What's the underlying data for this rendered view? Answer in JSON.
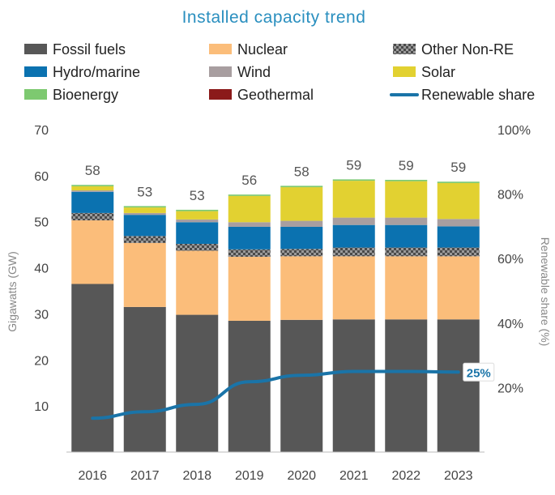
{
  "chart_data": {
    "type": "bar",
    "stacked": true,
    "title": "Installed capacity trend",
    "categories": [
      "2016",
      "2017",
      "2018",
      "2019",
      "2020",
      "2021",
      "2022",
      "2023"
    ],
    "ylabel": "Gigawatts (GW)",
    "y2label": "Renewable share (%)",
    "ylim": [
      0,
      70
    ],
    "y2lim": [
      0,
      100
    ],
    "yticks": [
      10,
      20,
      30,
      40,
      50,
      60,
      70
    ],
    "y2ticks": [
      "20%",
      "40%",
      "60%",
      "80%",
      "100%"
    ],
    "y2tick_values": [
      20,
      40,
      60,
      80,
      100
    ],
    "series": [
      {
        "name": "Fossil fuels",
        "color": "#575757",
        "values": [
          36.5,
          31.5,
          29.8,
          28.5,
          28.7,
          28.8,
          28.8,
          28.8
        ]
      },
      {
        "name": "Nuclear",
        "color": "#fbbd7a",
        "values": [
          13.8,
          13.9,
          13.9,
          13.9,
          13.8,
          13.7,
          13.7,
          13.7
        ]
      },
      {
        "name": "Other Non-RE",
        "color": "#707070",
        "pattern": "checker",
        "values": [
          1.6,
          1.5,
          1.5,
          1.6,
          1.6,
          1.9,
          1.9,
          1.9
        ]
      },
      {
        "name": "Hydro/marine",
        "color": "#0b72b0",
        "values": [
          4.6,
          4.6,
          4.7,
          4.9,
          4.8,
          4.9,
          4.9,
          4.6
        ]
      },
      {
        "name": "Wind",
        "color": "#a89ea0",
        "values": [
          0.3,
          0.4,
          0.6,
          1.0,
          1.3,
          1.6,
          1.6,
          1.6
        ]
      },
      {
        "name": "Solar",
        "color": "#e2d131",
        "values": [
          0.9,
          1.2,
          1.8,
          5.7,
          7.3,
          8.0,
          7.9,
          7.8
        ]
      },
      {
        "name": "Bioenergy",
        "color": "#7dc970",
        "values": [
          0.3,
          0.3,
          0.3,
          0.3,
          0.3,
          0.3,
          0.3,
          0.3
        ]
      },
      {
        "name": "Geothermal",
        "color": "#8b1a1a",
        "values": [
          0,
          0,
          0,
          0,
          0,
          0,
          0,
          0
        ]
      }
    ],
    "totals": [
      "58",
      "53",
      "53",
      "56",
      "58",
      "59",
      "59",
      "59"
    ],
    "line": {
      "name": "Renewable share",
      "color": "#1a74a8",
      "axis": "right",
      "values": [
        10.5,
        12.5,
        14.8,
        21.8,
        23.8,
        25.0,
        25.0,
        24.8
      ]
    },
    "line_end_label": "25%",
    "legend": [
      "Fossil fuels",
      "Nuclear",
      "Other Non-RE",
      "Hydro/marine",
      "Wind",
      "Solar",
      "Bioenergy",
      "Geothermal",
      "Renewable share"
    ],
    "legend_position": "top"
  }
}
